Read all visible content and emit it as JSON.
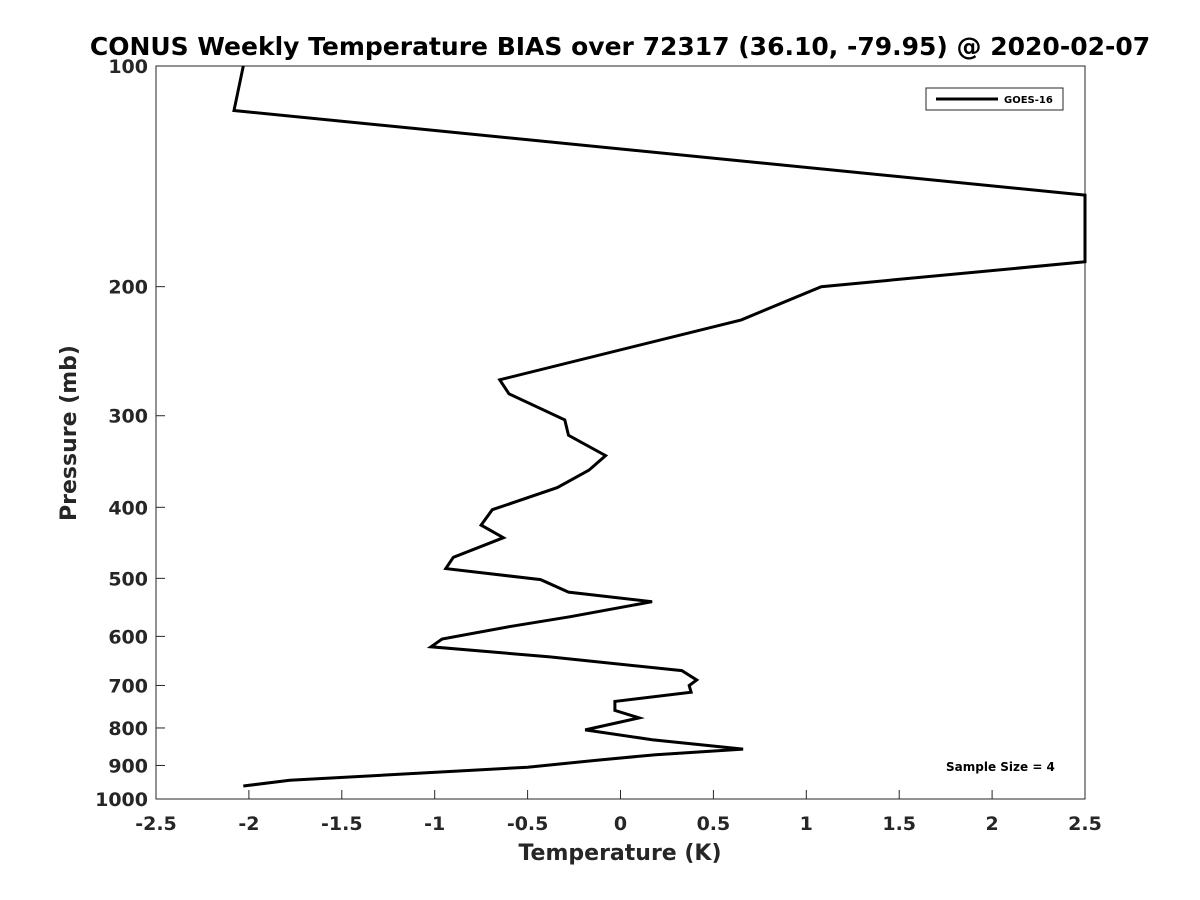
{
  "chart_data": {
    "type": "line",
    "title": "CONUS Weekly Temperature BIAS over 72317 (36.10, -79.95) @ 2020-02-07",
    "xlabel": "Temperature (K)",
    "ylabel": "Pressure (mb)",
    "xlim": [
      -2.5,
      2.5
    ],
    "ylim": [
      1000,
      100
    ],
    "yscale": "log",
    "y_reversed": true,
    "xticks": [
      "-2.5",
      "-2",
      "-1.5",
      "-1",
      "-0.5",
      "0",
      "0.5",
      "1",
      "1.5",
      "2",
      "2.5"
    ],
    "yticks": [
      "100",
      "200",
      "300",
      "400",
      "500",
      "600",
      "700",
      "800",
      "900",
      "1000"
    ],
    "grid": false,
    "legend_position": "top-right",
    "series": [
      {
        "name": "GOES-16",
        "color": "#000000",
        "points": [
          {
            "x": -2.03,
            "y": 100
          },
          {
            "x": -2.08,
            "y": 115
          },
          {
            "x": 2.5,
            "y": 150
          },
          {
            "x": 2.5,
            "y": 185
          },
          {
            "x": 1.08,
            "y": 200
          },
          {
            "x": 0.65,
            "y": 222
          },
          {
            "x": -0.65,
            "y": 268
          },
          {
            "x": -0.6,
            "y": 280
          },
          {
            "x": -0.3,
            "y": 304
          },
          {
            "x": -0.28,
            "y": 319
          },
          {
            "x": -0.08,
            "y": 340
          },
          {
            "x": -0.17,
            "y": 356
          },
          {
            "x": -0.34,
            "y": 376
          },
          {
            "x": -0.69,
            "y": 403
          },
          {
            "x": -0.75,
            "y": 423
          },
          {
            "x": -0.63,
            "y": 440
          },
          {
            "x": -0.9,
            "y": 468
          },
          {
            "x": -0.94,
            "y": 485
          },
          {
            "x": -0.43,
            "y": 502
          },
          {
            "x": -0.28,
            "y": 522
          },
          {
            "x": 0.17,
            "y": 538
          },
          {
            "x": -0.27,
            "y": 564
          },
          {
            "x": -0.6,
            "y": 582
          },
          {
            "x": -0.96,
            "y": 605
          },
          {
            "x": -1.02,
            "y": 620
          },
          {
            "x": -0.38,
            "y": 640
          },
          {
            "x": 0.33,
            "y": 668
          },
          {
            "x": 0.41,
            "y": 688
          },
          {
            "x": 0.37,
            "y": 700
          },
          {
            "x": 0.38,
            "y": 715
          },
          {
            "x": -0.03,
            "y": 736
          },
          {
            "x": -0.03,
            "y": 757
          },
          {
            "x": 0.1,
            "y": 775
          },
          {
            "x": -0.19,
            "y": 805
          },
          {
            "x": 0.17,
            "y": 830
          },
          {
            "x": 0.66,
            "y": 855
          },
          {
            "x": 0.19,
            "y": 870
          },
          {
            "x": -0.12,
            "y": 885
          },
          {
            "x": -0.5,
            "y": 905
          },
          {
            "x": -1.78,
            "y": 943
          },
          {
            "x": -2.03,
            "y": 960
          }
        ]
      }
    ],
    "annotations": [
      {
        "text": "Sample Size = 4"
      }
    ]
  }
}
